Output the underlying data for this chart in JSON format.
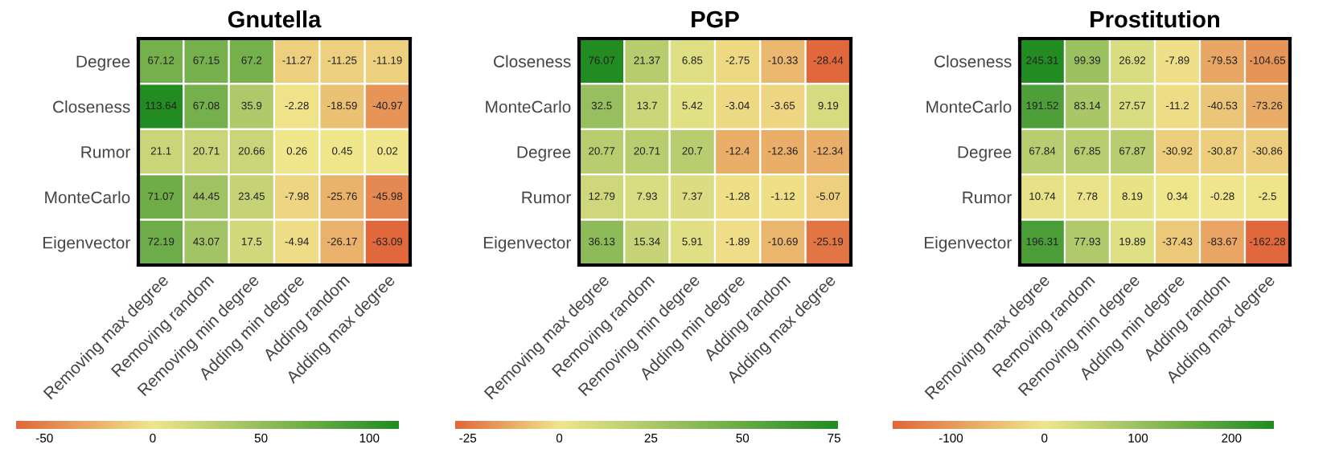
{
  "chart_data": [
    {
      "type": "heatmap",
      "title": "Gnutella",
      "categories": [
        "Removing max degree",
        "Removing random",
        "Removing min degree",
        "Adding min degree",
        "Adding random",
        "Adding max degree"
      ],
      "y_categories": [
        "Degree",
        "Closeness",
        "Rumor",
        "MonteCarlo",
        "Eigenvector"
      ],
      "cells": [
        [
          67.12,
          67.15,
          67.2,
          -11.27,
          -11.25,
          -11.19
        ],
        [
          113.64,
          67.08,
          35.9,
          -2.28,
          -18.59,
          -40.97
        ],
        [
          21.1,
          20.71,
          20.66,
          0.26,
          0.45,
          0.02
        ],
        [
          71.07,
          44.45,
          23.45,
          -7.98,
          -25.76,
          -45.98
        ],
        [
          72.19,
          43.07,
          17.5,
          -4.94,
          -26.17,
          -63.09
        ]
      ],
      "clim": [
        -63.09,
        113.64
      ],
      "cticks": [
        -50,
        0,
        50,
        100
      ],
      "data_labels": true
    },
    {
      "type": "heatmap",
      "title": "PGP",
      "categories": [
        "Removing max degree",
        "Removing random",
        "Removing min degree",
        "Adding min degree",
        "Adding random",
        "Adding max degree"
      ],
      "y_categories": [
        "Closeness",
        "MonteCarlo",
        "Degree",
        "Rumor",
        "Eigenvector"
      ],
      "cells": [
        [
          76.07,
          21.37,
          6.85,
          -2.75,
          -10.33,
          -28.44
        ],
        [
          32.5,
          13.7,
          5.42,
          -3.04,
          -3.65,
          9.19
        ],
        [
          20.77,
          20.71,
          20.7,
          -12.4,
          -12.36,
          -12.34
        ],
        [
          12.79,
          7.93,
          7.37,
          -1.28,
          -1.12,
          -5.07
        ],
        [
          36.13,
          15.34,
          5.91,
          -1.89,
          -10.69,
          -25.19
        ]
      ],
      "clim": [
        -28.44,
        76.07
      ],
      "cticks": [
        -25,
        0,
        25,
        50,
        75
      ],
      "data_labels": true
    },
    {
      "type": "heatmap",
      "title": "Prostitution",
      "categories": [
        "Removing max degree",
        "Removing random",
        "Removing min degree",
        "Adding min degree",
        "Adding random",
        "Adding max degree"
      ],
      "y_categories": [
        "Closeness",
        "MonteCarlo",
        "Degree",
        "Rumor",
        "Eigenvector"
      ],
      "cells": [
        [
          245.31,
          99.39,
          26.92,
          -7.89,
          -79.53,
          -104.65
        ],
        [
          191.52,
          83.14,
          27.57,
          -11.2,
          -40.53,
          -73.26
        ],
        [
          67.84,
          67.85,
          67.87,
          -30.92,
          -30.87,
          -30.86
        ],
        [
          10.74,
          7.78,
          8.19,
          0.34,
          -0.28,
          -2.5
        ],
        [
          196.31,
          77.93,
          19.89,
          -37.43,
          -83.67,
          -162.28
        ]
      ],
      "clim": [
        -162.28,
        245.31
      ],
      "cticks": [
        -100,
        0,
        100,
        200
      ],
      "data_labels": true
    }
  ]
}
